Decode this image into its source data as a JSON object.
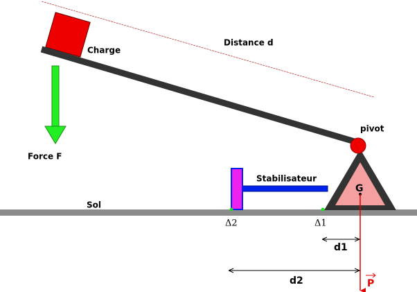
{
  "labels": {
    "charge": "Charge",
    "distance": "Distance d",
    "force": "Force F",
    "pivot": "pivot",
    "stabilisateur": "Stabilisateur",
    "g": "G",
    "sol": "Sol",
    "delta2": "Δ2",
    "delta1": "Δ1",
    "d1": "d1",
    "d2": "d2",
    "p": "P"
  }
}
